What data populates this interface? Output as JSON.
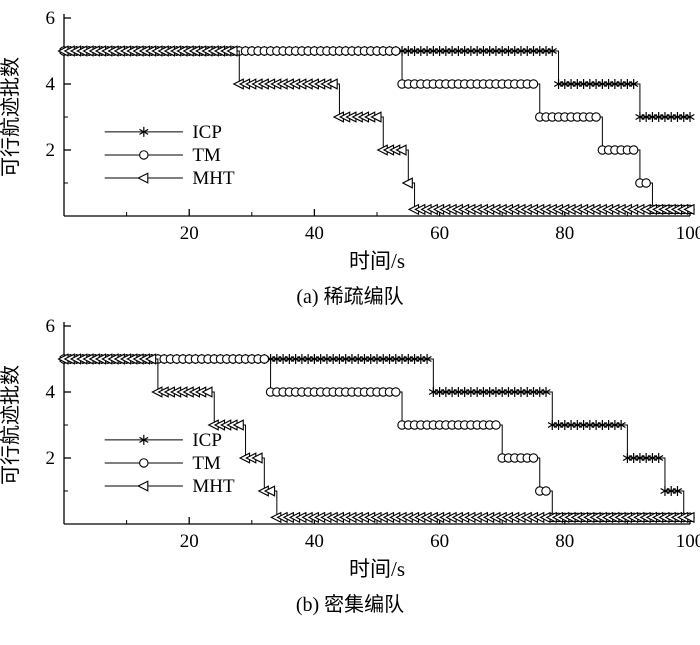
{
  "chart_data": [
    {
      "id": "a",
      "type": "step-line",
      "subtitle": "(a) 稀疏编队",
      "xlabel": "时间/s",
      "ylabel": "可行航迹批数",
      "xlim": [
        0,
        100
      ],
      "ylim": [
        0,
        6
      ],
      "xticks_major": [
        20,
        40,
        60,
        80,
        100
      ],
      "xticks_minor": [
        10,
        30,
        50,
        70,
        90
      ],
      "yticks_major": [
        2,
        4,
        6
      ],
      "yticks_minor": [
        1,
        3,
        5
      ],
      "grid": false,
      "legend_position": "left-middle-inside",
      "series": [
        {
          "name": "ICP",
          "marker": "asterisk",
          "segments": [
            [
              0,
              78,
              5
            ],
            [
              79,
              91,
              4
            ],
            [
              92,
              100,
              3
            ]
          ]
        },
        {
          "name": "TM",
          "marker": "circle",
          "segments": [
            [
              0,
              53,
              5
            ],
            [
              54,
              75,
              4
            ],
            [
              76,
              85,
              3
            ],
            [
              86,
              91,
              2
            ],
            [
              92,
              93,
              1
            ],
            [
              94,
              100,
              0.2
            ]
          ]
        },
        {
          "name": "MHT",
          "marker": "triangle-left",
          "segments": [
            [
              0,
              27,
              5
            ],
            [
              28,
              43,
              4
            ],
            [
              44,
              50,
              3
            ],
            [
              51,
              54,
              2
            ],
            [
              55,
              55,
              1
            ],
            [
              56,
              100,
              0.2
            ]
          ]
        }
      ]
    },
    {
      "id": "b",
      "type": "step-line",
      "subtitle": "(b) 密集编队",
      "xlabel": "时间/s",
      "ylabel": "可行航迹批数",
      "xlim": [
        0,
        100
      ],
      "ylim": [
        0,
        6
      ],
      "xticks_major": [
        20,
        40,
        60,
        80,
        100
      ],
      "xticks_minor": [
        10,
        30,
        50,
        70,
        90
      ],
      "yticks_major": [
        2,
        4,
        6
      ],
      "yticks_minor": [
        1,
        3,
        5
      ],
      "grid": false,
      "legend_position": "left-middle-inside",
      "series": [
        {
          "name": "ICP",
          "marker": "asterisk",
          "segments": [
            [
              0,
              58,
              5
            ],
            [
              59,
              77,
              4
            ],
            [
              78,
              89,
              3
            ],
            [
              90,
              95,
              2
            ],
            [
              96,
              98,
              1
            ],
            [
              99,
              100,
              0.2
            ]
          ]
        },
        {
          "name": "TM",
          "marker": "circle",
          "segments": [
            [
              0,
              32,
              5
            ],
            [
              33,
              53,
              4
            ],
            [
              54,
              69,
              3
            ],
            [
              70,
              75,
              2
            ],
            [
              76,
              77,
              1
            ],
            [
              78,
              100,
              0.2
            ]
          ]
        },
        {
          "name": "MHT",
          "marker": "triangle-left",
          "segments": [
            [
              0,
              14,
              5
            ],
            [
              15,
              23,
              4
            ],
            [
              24,
              28,
              3
            ],
            [
              29,
              31,
              2
            ],
            [
              32,
              33,
              1
            ],
            [
              34,
              100,
              0.2
            ]
          ]
        }
      ]
    }
  ],
  "style": {
    "line_color": "#000000",
    "background": "#ffffff"
  }
}
